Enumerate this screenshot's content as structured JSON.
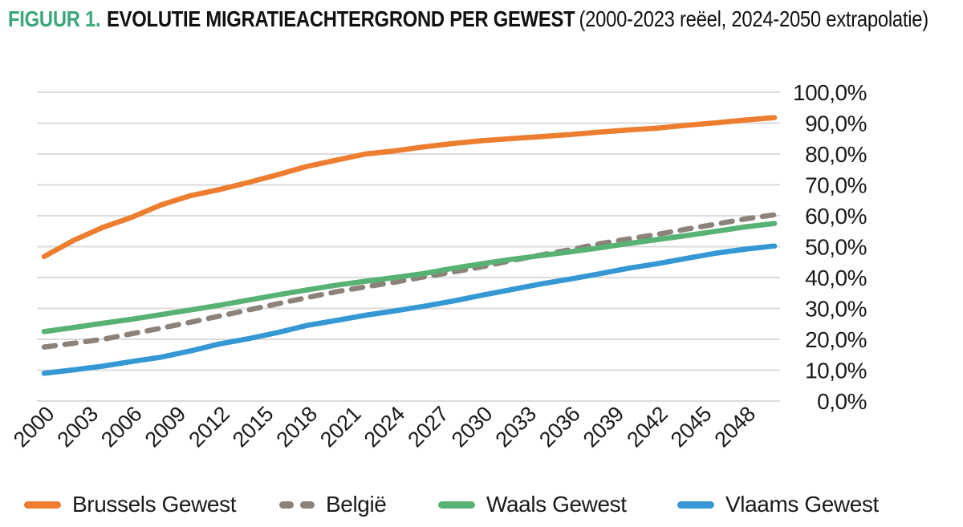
{
  "title": {
    "prefix": "FIGUUR 1.",
    "main": "EVOLUTIE MIGRATIEACHTERGROND PER GEWEST",
    "suffix": "(2000-2023 reëel, 2024-2050 extrapolatie)"
  },
  "colors": {
    "accent_green": "#3BA77A",
    "grid": "#DBDBDB",
    "text": "#1A1A1A",
    "brussels": "#ED7D2F",
    "belgie": "#8C827A",
    "waals": "#58B274",
    "vlaams": "#3598D4"
  },
  "chart_data": {
    "type": "line",
    "title": "EVOLUTIE MIGRATIEACHTERGROND PER GEWEST",
    "subtitle": "(2000-2023 reëel, 2024-2050 extrapolatie)",
    "xlabel": "",
    "ylabel": "",
    "ylim": [
      0,
      100
    ],
    "grid": true,
    "legend_position": "bottom",
    "y_ticks": [
      "100,0%",
      "90,0%",
      "80,0%",
      "70,0%",
      "60,0%",
      "50,0%",
      "40,0%",
      "30,0%",
      "20,0%",
      "10,0%",
      "0,0%"
    ],
    "x_tick_labels": [
      "2000",
      "2003",
      "2006",
      "2009",
      "2012",
      "2015",
      "2018",
      "2021",
      "2024",
      "2027",
      "2030",
      "2033",
      "2036",
      "2039",
      "2042",
      "2045",
      "2048"
    ],
    "x": [
      2000,
      2002,
      2004,
      2006,
      2008,
      2010,
      2012,
      2014,
      2016,
      2018,
      2020,
      2022,
      2024,
      2026,
      2028,
      2030,
      2032,
      2034,
      2036,
      2038,
      2040,
      2042,
      2044,
      2046,
      2048,
      2050
    ],
    "series": [
      {
        "name": "Brussels Gewest",
        "color": "#ED7D2F",
        "style": "solid",
        "values": [
          46.8,
          52.0,
          56.2,
          59.5,
          63.5,
          66.5,
          68.5,
          70.8,
          73.3,
          76.0,
          78.0,
          80.0,
          81.0,
          82.3,
          83.4,
          84.3,
          85.0,
          85.6,
          86.3,
          87.1,
          87.8,
          88.4,
          89.3,
          90.1,
          91.0,
          91.8
        ]
      },
      {
        "name": "België",
        "color": "#8C827A",
        "style": "dashed",
        "values": [
          17.5,
          18.7,
          20.0,
          21.8,
          23.6,
          25.5,
          27.5,
          29.5,
          31.5,
          33.5,
          35.4,
          37.0,
          38.5,
          40.2,
          41.8,
          43.5,
          45.5,
          47.3,
          49.0,
          50.9,
          52.5,
          54.0,
          55.7,
          57.3,
          59.0,
          60.3
        ]
      },
      {
        "name": "Waals Gewest",
        "color": "#58B274",
        "style": "solid",
        "values": [
          22.5,
          23.8,
          25.2,
          26.5,
          28.0,
          29.5,
          31.0,
          32.7,
          34.4,
          36.0,
          37.5,
          38.8,
          40.0,
          41.3,
          43.0,
          44.5,
          45.9,
          47.1,
          48.3,
          49.6,
          51.0,
          52.3,
          53.6,
          55.0,
          56.4,
          57.5
        ]
      },
      {
        "name": "Vlaams Gewest",
        "color": "#3598D4",
        "style": "solid",
        "values": [
          9.0,
          10.1,
          11.3,
          12.8,
          14.2,
          16.2,
          18.5,
          20.2,
          22.2,
          24.5,
          26.1,
          27.8,
          29.2,
          30.7,
          32.4,
          34.3,
          36.1,
          37.9,
          39.5,
          41.2,
          43.0,
          44.5,
          46.2,
          47.9,
          49.2,
          50.2
        ]
      }
    ]
  }
}
